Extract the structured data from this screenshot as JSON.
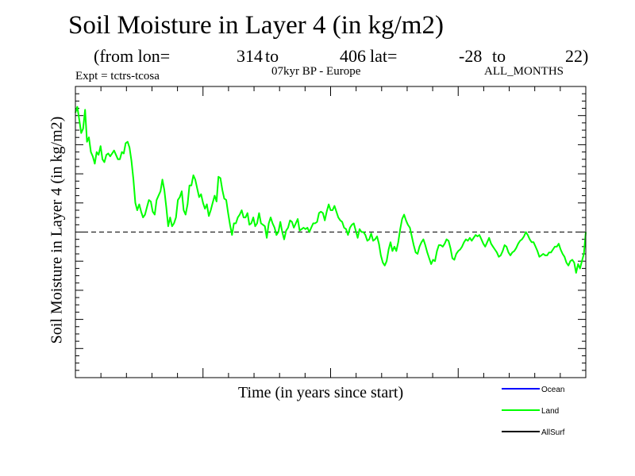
{
  "chart_data": {
    "type": "line",
    "title": "Soil Moisture in Layer 4 (in kg/m2)",
    "subtitle": {
      "prefix": "(from lon=",
      "lon_start": "314",
      "lon_to": "to",
      "lon_end": "406",
      "lat_label": "lat=",
      "lat_start": "-28",
      "lat_to": "to",
      "lat_end": "22)"
    },
    "experiment": "Expt = tctrs-tcosa",
    "period": "07kyr BP - Europe",
    "months": "ALL_MONTHS",
    "xlabel": "Time (in years since start)",
    "ylabel": "Soil Moisture in Layer 4 (in kg/m2)",
    "xlim": [
      0,
      200
    ],
    "ylim": [
      -1.0,
      1.0
    ],
    "reference_line": 0.0,
    "series": [
      {
        "name": "Ocean",
        "color": "#0000ff",
        "values": []
      },
      {
        "name": "Land",
        "color": "#00ff00",
        "values": [
          0.82,
          0.86,
          0.77,
          0.68,
          0.71,
          0.84,
          0.62,
          0.65,
          0.55,
          0.52,
          0.47,
          0.55,
          0.53,
          0.59,
          0.5,
          0.48,
          0.53,
          0.54,
          0.52,
          0.54,
          0.56,
          0.53,
          0.5,
          0.5,
          0.55,
          0.54,
          0.61,
          0.62,
          0.58,
          0.49,
          0.36,
          0.2,
          0.15,
          0.19,
          0.14,
          0.1,
          0.12,
          0.17,
          0.22,
          0.21,
          0.14,
          0.12,
          0.22,
          0.25,
          0.28,
          0.36,
          0.29,
          0.17,
          0.04,
          0.1,
          0.04,
          0.06,
          0.1,
          0.22,
          0.24,
          0.28,
          0.15,
          0.12,
          0.19,
          0.32,
          0.32,
          0.39,
          0.36,
          0.3,
          0.24,
          0.26,
          0.2,
          0.16,
          0.19,
          0.11,
          0.15,
          0.2,
          0.25,
          0.21,
          0.38,
          0.37,
          0.29,
          0.23,
          0.22,
          0.13,
          0.05,
          -0.02,
          0.06,
          0.06,
          0.1,
          0.12,
          0.15,
          0.1,
          0.1,
          0.13,
          0.05,
          0.06,
          0.1,
          0.04,
          0.06,
          0.13,
          0.06,
          0.05,
          0.04,
          -0.04,
          0.06,
          0.1,
          0.06,
          0.03,
          -0.02,
          0.0,
          0.07,
          0.0,
          -0.05,
          0.01,
          0.03,
          0.08,
          0.07,
          0.03,
          0.06,
          0.09,
          0.01,
          0.02,
          0.03,
          0.02,
          0.03,
          0.0,
          0.03,
          0.06,
          0.06,
          0.07,
          0.13,
          0.14,
          0.13,
          0.08,
          0.14,
          0.19,
          0.15,
          0.15,
          0.18,
          0.14,
          0.1,
          0.08,
          0.07,
          0.03,
          0.02,
          -0.02,
          0.03,
          0.05,
          0.06,
          0.01,
          -0.04,
          0.02,
          0.0,
          0.0,
          -0.02,
          -0.06,
          -0.05,
          -0.01,
          -0.06,
          -0.05,
          -0.03,
          -0.08,
          -0.16,
          -0.21,
          -0.23,
          -0.2,
          -0.12,
          -0.07,
          -0.13,
          -0.1,
          -0.13,
          -0.07,
          0.02,
          0.09,
          0.12,
          0.08,
          0.05,
          0.03,
          -0.03,
          -0.09,
          -0.14,
          -0.15,
          -0.1,
          -0.07,
          -0.05,
          -0.09,
          -0.14,
          -0.18,
          -0.22,
          -0.19,
          -0.2,
          -0.13,
          -0.09,
          -0.09,
          -0.1,
          -0.08,
          -0.05,
          -0.06,
          -0.11,
          -0.18,
          -0.19,
          -0.15,
          -0.13,
          -0.12,
          -0.1,
          -0.07,
          -0.05,
          -0.06,
          -0.04,
          -0.06,
          -0.04,
          -0.02,
          -0.03,
          -0.02,
          -0.05,
          -0.08,
          -0.1,
          -0.07,
          -0.04,
          -0.08,
          -0.1,
          -0.12,
          -0.14,
          -0.17,
          -0.16,
          -0.13,
          -0.09,
          -0.1,
          -0.14,
          -0.16,
          -0.14,
          -0.13,
          -0.11,
          -0.08,
          -0.06,
          -0.05,
          -0.03,
          0.0,
          -0.02,
          -0.05,
          -0.07,
          -0.07,
          -0.1,
          -0.13,
          -0.17,
          -0.16,
          -0.15,
          -0.16,
          -0.16,
          -0.14,
          -0.14,
          -0.12,
          -0.1,
          -0.1,
          -0.08,
          -0.12,
          -0.15,
          -0.17,
          -0.21,
          -0.23,
          -0.2,
          -0.19,
          -0.21,
          -0.28,
          -0.22,
          -0.25,
          -0.2,
          -0.15,
          0.0
        ]
      },
      {
        "name": "AllSurf",
        "color": "#000000",
        "values": []
      }
    ],
    "legend_placement": "bottom-right"
  }
}
